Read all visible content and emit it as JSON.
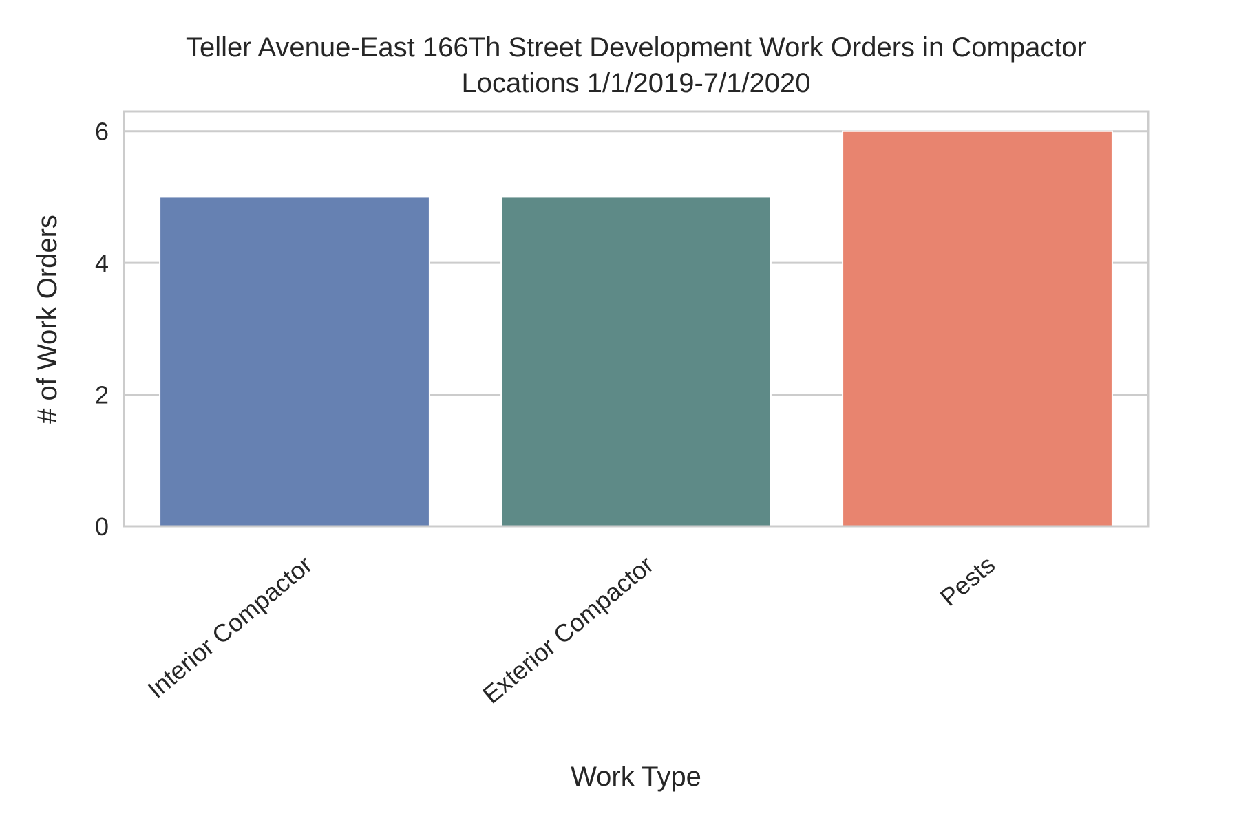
{
  "chart_data": {
    "type": "bar",
    "title_line1": "Teller Avenue-East 166Th Street Development Work Orders in Compactor",
    "title_line2": "Locations 1/1/2019-7/1/2020",
    "xlabel": "Work Type",
    "ylabel": "# of Work Orders",
    "categories": [
      "Interior Compactor",
      "Exterior Compactor",
      "Pests"
    ],
    "values": [
      5,
      5,
      6
    ],
    "colors": [
      "#6681b2",
      "#5e8a87",
      "#e8846f"
    ],
    "ylim": [
      0,
      6.3
    ],
    "yticks": [
      0,
      2,
      4,
      6
    ],
    "grid": true,
    "legend": "none"
  }
}
